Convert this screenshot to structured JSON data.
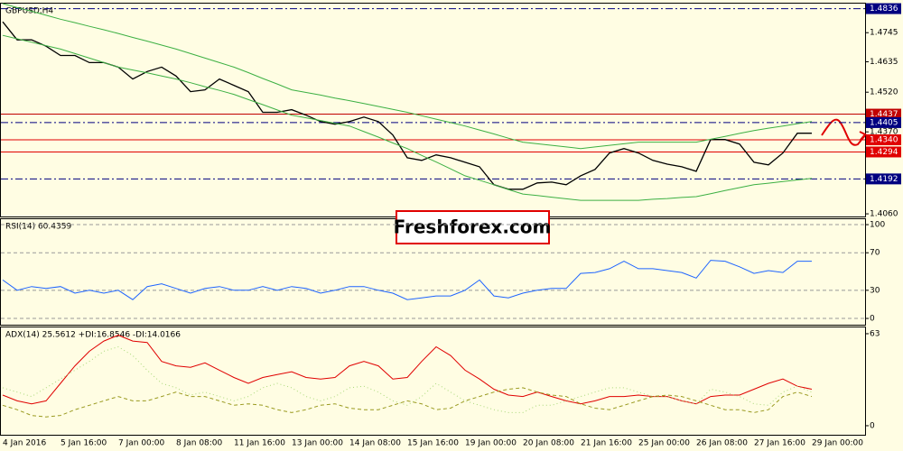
{
  "chart_data": [
    {
      "type": "line",
      "title": "GBPUSD,H4",
      "watermark": "Freshforex.com",
      "categories": [
        "4 Jan 2016",
        null,
        null,
        null,
        "5 Jan 16:00",
        null,
        null,
        null,
        "7 Jan 00:00",
        null,
        null,
        null,
        "8 Jan 08:00",
        null,
        null,
        null,
        "11 Jan 16:00",
        null,
        null,
        null,
        "13 Jan 00:00",
        null,
        null,
        null,
        "14 Jan 08:00",
        null,
        null,
        null,
        "15 Jan 16:00",
        null,
        null,
        null,
        "19 Jan 00:00",
        null,
        null,
        null,
        "20 Jan 08:00",
        null,
        null,
        null,
        "21 Jan 16:00",
        null,
        null,
        null,
        "25 Jan 00:00",
        null,
        null,
        null,
        "26 Jan 08:00",
        null,
        null,
        null,
        "27 Jan 16:00",
        null,
        null,
        null,
        "29 Jan 00:00"
      ],
      "ylim": [
        1.405,
        1.4855
      ],
      "yticks": [
        1.4745,
        1.4635,
        {
          "value": 1.452,
          "label": "1.4520"
        },
        {
          "value": 1.406,
          "label": "1.4060"
        }
      ],
      "grid": false,
      "series": [
        {
          "color": "#000000",
          "values": [
            1.4786,
            1.4718,
            1.4718,
            1.4694,
            1.4659,
            1.4659,
            1.4632,
            1.4632,
            1.4615,
            1.457,
            1.4598,
            1.4615,
            1.4581,
            1.4522,
            1.4529,
            1.457,
            1.4546,
            1.4522,
            1.4444,
            1.4444,
            1.4454,
            1.4433,
            1.4409,
            1.4399,
            1.4409,
            1.4426,
            1.4409,
            1.4358,
            1.4272,
            1.4262,
            1.4283,
            1.4272,
            1.4255,
            1.4238,
            1.417,
            1.4153,
            1.4153,
            1.4177,
            1.418,
            1.417,
            1.4204,
            1.4228,
            1.429,
            1.4307,
            1.429,
            1.4262,
            1.4248,
            1.4238,
            1.4221,
            1.4341,
            1.4341,
            1.4324,
            1.4255,
            1.4245,
            1.429,
            1.4365,
            1.4365
          ]
        },
        {
          "color": "#3cb043",
          "values": [
            1.4855,
            1.484,
            1.4826,
            1.4811,
            1.4796,
            1.4783,
            1.4769,
            1.4756,
            1.4742,
            1.4727,
            1.4713,
            1.4698,
            1.4683,
            1.4666,
            1.4649,
            1.4632,
            1.4615,
            1.4594,
            1.4572,
            1.4551,
            1.4529,
            1.4519,
            1.4509,
            1.4498,
            1.4488,
            1.4477,
            1.4466,
            1.4455,
            1.4444,
            1.4431,
            1.4418,
            1.4405,
            1.4392,
            1.4377,
            1.4362,
            1.4346,
            1.4331,
            1.4325,
            1.4319,
            1.4313,
            1.4307,
            1.4313,
            1.4319,
            1.4325,
            1.4331,
            1.4331,
            1.4331,
            1.4331,
            1.4331,
            1.4342,
            1.4353,
            1.4364,
            1.4375,
            1.4384,
            1.4392,
            1.4401,
            1.4409
          ]
        },
        {
          "color": "#3cb043",
          "values": [
            1.4735,
            1.4722,
            1.4709,
            1.4696,
            1.4683,
            1.4666,
            1.4649,
            1.4632,
            1.4615,
            1.4604,
            1.4593,
            1.4581,
            1.457,
            1.4556,
            1.4541,
            1.4527,
            1.4512,
            1.4492,
            1.4473,
            1.4453,
            1.4433,
            1.4423,
            1.4413,
            1.4402,
            1.4392,
            1.4371,
            1.435,
            1.4328,
            1.4307,
            1.4281,
            1.4256,
            1.423,
            1.4204,
            1.4187,
            1.417,
            1.4152,
            1.4135,
            1.4129,
            1.4123,
            1.4117,
            1.4111,
            1.4111,
            1.4111,
            1.4111,
            1.4111,
            1.4115,
            1.4118,
            1.4122,
            1.4125,
            1.4136,
            1.4148,
            1.4159,
            1.417,
            1.4176,
            1.4182,
            1.4188,
            1.4194
          ]
        }
      ],
      "levels": [
        {
          "value": 1.4836,
          "color": "#000080",
          "style": "dashdot"
        },
        {
          "value": 1.4437,
          "color": "#c00000",
          "style": "solid"
        },
        {
          "value": 1.4405,
          "color": "#000080",
          "style": "dashdot"
        },
        {
          "value": {
            "value": 1.434,
            "label": "1.4340"
          },
          "color": "#e00000",
          "style": "solid"
        },
        {
          "value": 1.4294,
          "color": "#e00000",
          "style": "solid"
        },
        {
          "value": 1.4192,
          "color": "#000080",
          "style": "dashdot"
        }
      ],
      "last_price": {
        "value": 1.437,
        "label": "1.4370"
      }
    },
    {
      "type": "line",
      "title": "RSI(14) 60.4359",
      "ylim": [
        -6.7,
        105.8
      ],
      "yticks": [
        0,
        30,
        70,
        100
      ],
      "grid": true,
      "series": [
        {
          "color": "#1e64ff",
          "values": [
            41,
            30,
            34,
            32,
            34,
            27,
            30,
            27,
            30,
            20,
            34,
            37,
            32,
            27,
            32,
            34,
            30,
            30,
            34,
            30,
            34,
            32,
            27,
            30,
            34,
            34,
            30,
            27,
            20,
            22,
            24,
            24,
            30,
            41,
            24,
            22,
            27,
            30,
            32,
            32,
            48,
            49,
            53,
            61,
            53,
            53,
            51,
            49,
            43,
            62,
            61,
            55,
            48,
            51,
            49,
            61,
            61
          ]
        }
      ]
    },
    {
      "type": "line",
      "title": "ADX(14) 25.5612 +DI:16.8546 -DI:14.0166",
      "ylim": [
        -6.2,
        67.3
      ],
      "yticks": [
        0,
        63
      ],
      "grid": false,
      "series": [
        {
          "color": "#e00000",
          "style": "solid",
          "values": [
            21,
            17,
            15,
            17,
            29,
            41,
            51,
            58,
            62,
            58,
            57,
            44,
            41,
            40,
            43,
            38,
            33,
            29,
            33,
            35,
            37,
            33,
            32,
            33,
            41,
            44,
            41,
            32,
            33,
            44,
            54,
            48,
            38,
            32,
            25,
            21,
            20,
            23,
            20,
            17,
            15,
            17,
            20,
            20,
            21,
            20,
            20,
            17,
            15,
            20,
            21,
            21,
            25,
            29,
            32,
            27,
            25
          ]
        },
        {
          "color": "#a8d878",
          "style": "dotted",
          "values": [
            26,
            23,
            20,
            26,
            32,
            38,
            44,
            51,
            54,
            48,
            38,
            29,
            26,
            21,
            23,
            20,
            17,
            20,
            26,
            29,
            26,
            20,
            17,
            20,
            26,
            27,
            23,
            17,
            14,
            20,
            29,
            23,
            17,
            14,
            11,
            9,
            9,
            14,
            14,
            17,
            20,
            23,
            26,
            26,
            23,
            20,
            20,
            17,
            15,
            25,
            23,
            20,
            15,
            14,
            23,
            27,
            23
          ]
        },
        {
          "color": "#9a9a20",
          "style": "dashed",
          "values": [
            14,
            11,
            7,
            6,
            7,
            11,
            14,
            17,
            20,
            17,
            17,
            20,
            23,
            20,
            20,
            17,
            14,
            15,
            14,
            11,
            9,
            11,
            14,
            15,
            12,
            11,
            11,
            14,
            17,
            15,
            11,
            12,
            17,
            20,
            23,
            25,
            26,
            23,
            21,
            20,
            15,
            12,
            11,
            14,
            17,
            20,
            21,
            20,
            17,
            14,
            11,
            11,
            9,
            11,
            20,
            23,
            20
          ]
        }
      ]
    }
  ]
}
